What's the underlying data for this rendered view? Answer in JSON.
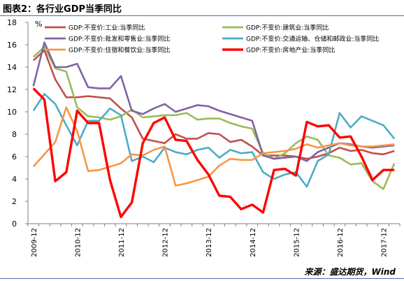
{
  "figure_title": "图表2：各行业GDP当季同比",
  "source": "来源：盛达期货，Wind",
  "chart_data": {
    "type": "line",
    "ylabel": "%",
    "ylim": [
      0,
      18
    ],
    "yticks": [
      0,
      2,
      4,
      6,
      8,
      10,
      12,
      14,
      16,
      18
    ],
    "xtick_labels": [
      "2009-12",
      "2010-04",
      "2010-08",
      "2010-12",
      "2011-04",
      "2011-08",
      "2011-12",
      "2012-04",
      "2012-08",
      "2012-12",
      "2013-04",
      "2013-08",
      "2013-12",
      "2014-04",
      "2014-08",
      "2014-12",
      "2015-04",
      "2015-08",
      "2015-12",
      "2016-04",
      "2016-08",
      "2016-12",
      "2017-04",
      "2017-08",
      "2017-12"
    ],
    "x": [
      "2009-12",
      "2010-03",
      "2010-06",
      "2010-09",
      "2010-12",
      "2011-03",
      "2011-06",
      "2011-09",
      "2011-12",
      "2012-03",
      "2012-06",
      "2012-09",
      "2012-12",
      "2013-03",
      "2013-06",
      "2013-09",
      "2013-12",
      "2014-03",
      "2014-06",
      "2014-09",
      "2014-12",
      "2015-03",
      "2015-06",
      "2015-09",
      "2015-12",
      "2016-03",
      "2016-06",
      "2016-09",
      "2016-12",
      "2017-03",
      "2017-06",
      "2017-09",
      "2017-12",
      "2018-03"
    ],
    "grid": false,
    "legend": "top",
    "series": [
      {
        "name": "GDP:不变价:工业:当季同比",
        "color": "#c0504d",
        "values": [
          14.6,
          15.5,
          12.9,
          11.3,
          11.3,
          11.4,
          11.3,
          11.2,
          10.3,
          9.5,
          7.6,
          7.4,
          7.2,
          8.0,
          7.6,
          7.6,
          8.1,
          8.0,
          7.3,
          7.5,
          6.9,
          6.1,
          6.1,
          6.1,
          6.0,
          5.8,
          6.0,
          6.3,
          6.8,
          6.5,
          6.6,
          6.3,
          6.2,
          6.5
        ]
      },
      {
        "name": "GDP:不变价:建筑业:当季同比",
        "color": "#9bbb59",
        "values": [
          14.9,
          15.8,
          13.9,
          13.6,
          10.4,
          9.6,
          9.5,
          9.3,
          9.6,
          10.2,
          9.5,
          9.6,
          9.7,
          9.7,
          9.9,
          9.3,
          9.4,
          9.4,
          9.0,
          8.7,
          8.5,
          6.3,
          5.8,
          6.3,
          7.2,
          7.8,
          7.5,
          6.1,
          5.9,
          5.3,
          5.4,
          3.8,
          3.1,
          5.4
        ]
      },
      {
        "name": "GDP:不变价:批发和零售业:当季同比",
        "color": "#8064a2",
        "values": [
          12.3,
          16.2,
          14.0,
          14.0,
          14.3,
          12.2,
          12.1,
          12.1,
          13.2,
          10.1,
          9.8,
          10.3,
          10.7,
          10.0,
          10.3,
          10.6,
          10.5,
          10.1,
          9.8,
          9.5,
          9.2,
          6.1,
          5.8,
          5.9,
          6.0,
          5.6,
          6.4,
          6.8,
          7.2,
          7.1,
          6.9,
          6.8,
          6.9,
          7.0
        ]
      },
      {
        "name": "GDP:不变价:交通运输、仓储和邮政业:当季同比",
        "color": "#4bacc6",
        "values": [
          10.1,
          11.6,
          10.7,
          8.8,
          7.0,
          9.2,
          9.2,
          10.3,
          9.7,
          5.6,
          6.0,
          5.5,
          6.8,
          6.4,
          6.2,
          6.6,
          6.8,
          5.9,
          6.6,
          6.3,
          6.4,
          4.6,
          4.0,
          4.4,
          4.6,
          3.3,
          5.6,
          6.2,
          9.9,
          8.6,
          9.6,
          9.2,
          8.8,
          7.6
        ]
      },
      {
        "name": "GDP:不变价:住宿和餐饮业:当季同比",
        "color": "#f79646",
        "values": [
          5.1,
          6.2,
          7.3,
          10.4,
          8.3,
          4.7,
          4.8,
          5.1,
          5.4,
          6.2,
          6.1,
          6.6,
          6.9,
          3.4,
          3.6,
          3.9,
          4.2,
          5.2,
          5.8,
          5.7,
          5.7,
          6.3,
          6.4,
          6.5,
          6.7,
          7.1,
          6.8,
          7.0,
          7.2,
          7.0,
          6.9,
          6.9,
          7.0,
          7.1
        ]
      },
      {
        "name": "GDP:不变价:房地产业:当季同比",
        "color": "#ff0000",
        "values": [
          12.1,
          11.1,
          3.8,
          4.6,
          10.1,
          9.0,
          9.0,
          3.9,
          0.6,
          1.9,
          7.2,
          9.0,
          9.5,
          7.5,
          7.4,
          5.7,
          4.4,
          2.5,
          2.4,
          1.3,
          1.7,
          1.0,
          4.8,
          4.9,
          4.3,
          9.1,
          8.7,
          8.8,
          7.7,
          7.8,
          6.0,
          3.9,
          4.8,
          4.8
        ]
      }
    ]
  }
}
